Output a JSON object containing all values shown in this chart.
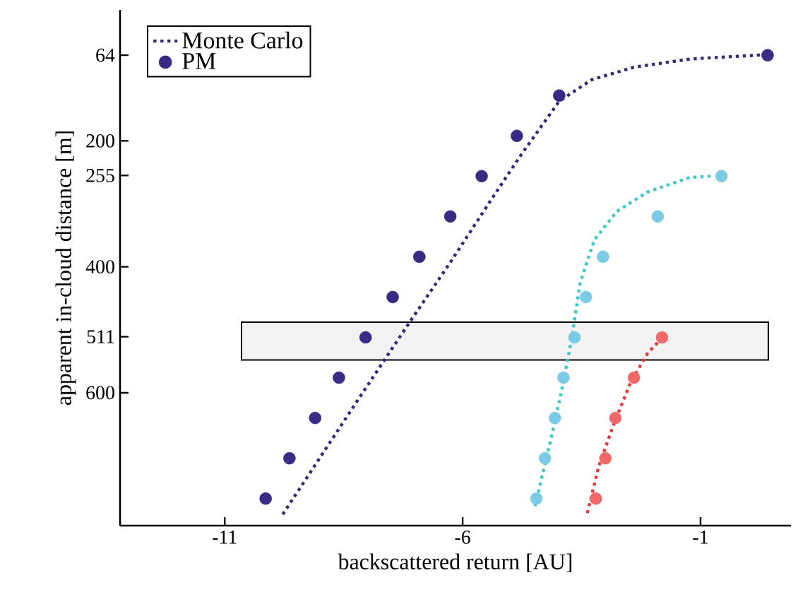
{
  "chart_data": {
    "type": "scatter",
    "xlabel": "backscattered return [AU]",
    "ylabel": "apparent in-cloud distance [m]",
    "xlim": [
      -13.2,
      0.9
    ],
    "ylim": [
      811,
      -8
    ],
    "xticks": [
      -11,
      -6,
      -1
    ],
    "yticks": [
      64,
      200,
      255,
      400,
      511,
      600
    ],
    "legend": "top left",
    "bands": [
      {
        "axis": "y",
        "from": 488,
        "to": 548,
        "color": "#f2f2f2"
      }
    ],
    "series": [
      {
        "name": "Monte Carlo",
        "type": "line",
        "line_style": "dotted",
        "marker": "none",
        "color": "#2e2a7a",
        "x": [
          -9.78,
          -8.92,
          -8.04,
          -7.15,
          -6.26,
          -5.37,
          -4.77,
          -3.97,
          -3.29,
          -2.4,
          -1.22,
          0.41
        ],
        "values": [
          793,
          694,
          593,
          492,
          393,
          290,
          222,
          137,
          103,
          83,
          70,
          63
        ]
      },
      {
        "name": "PM",
        "type": "scatter",
        "marker": "circle",
        "color": "#3b2a84",
        "x": [
          0.41,
          -3.97,
          -4.86,
          -5.6,
          -6.26,
          -6.91,
          -7.47,
          -8.04,
          -8.6,
          -9.1,
          -9.64,
          -10.14
        ],
        "values": [
          64,
          128,
          192,
          256,
          320,
          384,
          448,
          512,
          576,
          640,
          704,
          768
        ]
      },
      {
        "type": "line",
        "line_style": "dotted",
        "marker": "none",
        "color": "#3cc8c4",
        "x": [
          -4.48,
          -4.18,
          -3.94,
          -3.71,
          -3.53,
          -3.23,
          -2.76,
          -2.11,
          -1.22,
          -0.77
        ],
        "values": [
          780,
          685,
          604,
          515,
          425,
          357,
          312,
          281,
          258,
          256
        ]
      },
      {
        "type": "scatter",
        "marker": "circle",
        "color": "#7ccbe6",
        "x": [
          -0.56,
          -1.9,
          -3.05,
          -3.41,
          -3.65,
          -3.88,
          -4.06,
          -4.27,
          -4.45
        ],
        "values": [
          256,
          320,
          384,
          448,
          512,
          576,
          640,
          704,
          768
        ]
      },
      {
        "type": "line",
        "line_style": "dotted",
        "marker": "none",
        "color": "#e03a3a",
        "x": [
          -3.38,
          -3.14,
          -2.82,
          -2.46,
          -2.11,
          -1.75
        ],
        "values": [
          791,
          717,
          649,
          582,
          537,
          508
        ]
      },
      {
        "type": "scatter",
        "marker": "circle",
        "color": "#f06868",
        "x": [
          -1.81,
          -2.4,
          -2.79,
          -3.0,
          -3.2
        ],
        "values": [
          512,
          576,
          640,
          704,
          768
        ]
      }
    ]
  }
}
